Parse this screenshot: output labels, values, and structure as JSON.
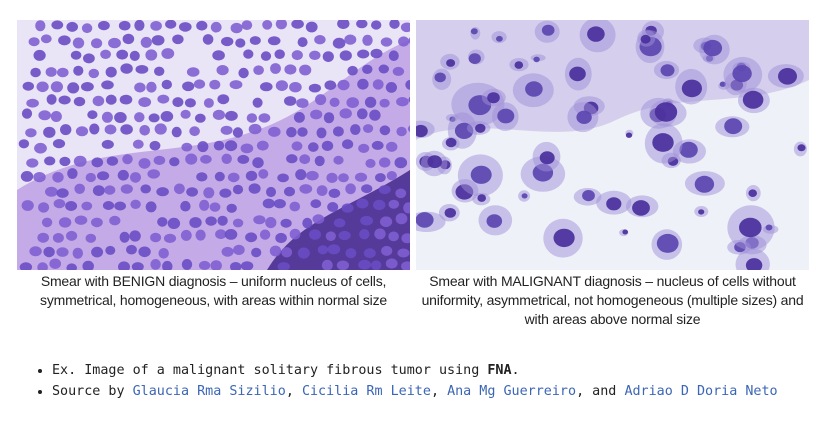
{
  "figure": {
    "left_caption": "Smear with BENIGN diagnosis – uniform nucleus of cells, symmetrical, homogeneous, with areas within normal size",
    "right_caption": "Smear with MALIGNANT diagnosis – nucleus of cells without uniformity, asymmetrical, not homogeneous (multiple sizes) and with areas above normal size"
  },
  "notes": {
    "item1_prefix": "Ex. Image of a malignant solitary fibrous tumor using ",
    "item1_bold": "FNA",
    "item1_suffix": ".",
    "item2_prefix": "Source by ",
    "authors": [
      "Glaucia Rma Sizilio",
      "Cicilia Rm Leite",
      "Ana Mg Guerreiro",
      "Adriao D Doria Neto"
    ],
    "sep1": ", ",
    "sep2": ", ",
    "sep3": ", and "
  },
  "colors": {
    "author_link": "#3b66b5",
    "benign_bg": "#e9e4f6",
    "malignant_bg": "#eef1f8",
    "nucleus_dark": "#4a2f9c",
    "stain_purple": "#8f62cf"
  }
}
